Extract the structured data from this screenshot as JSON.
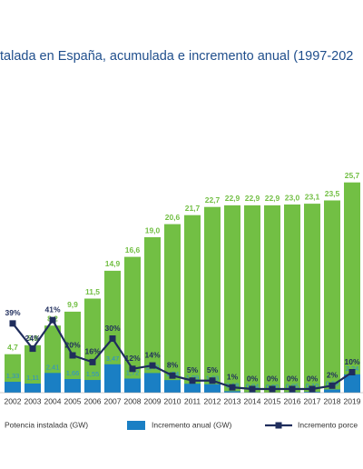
{
  "chart_data": {
    "type": "bar_line",
    "title": "talada en España, acumulada e incremento anual (1997-202",
    "categories": [
      "2002",
      "2003",
      "2004",
      "2005",
      "2006",
      "2007",
      "2008",
      "2009",
      "2010",
      "2011",
      "2012",
      "2013",
      "2014",
      "2015",
      "2016",
      "2017",
      "2018",
      "2019"
    ],
    "series": [
      {
        "name": "Potencia instalada (GW)",
        "color": "#72bf44",
        "values": [
          4.7,
          5.8,
          8.2,
          9.9,
          11.5,
          14.9,
          16.6,
          19.0,
          20.6,
          21.7,
          22.7,
          22.9,
          22.9,
          22.9,
          23.0,
          23.1,
          23.5,
          25.7
        ],
        "value_labels": [
          "4,7",
          "5,8",
          "8,2",
          "9,9",
          "11,5",
          "14,9",
          "16,6",
          "19,0",
          "20,6",
          "21,7",
          "22,7",
          "22,9",
          "22,9",
          "22,9",
          "23,0",
          "23,1",
          "23,5",
          "25,7"
        ]
      },
      {
        "name": "Incremento anual (GW)",
        "color": "#1a7fc4",
        "values": [
          1.33,
          1.11,
          2.41,
          1.66,
          1.55,
          3.47,
          1.72,
          2.4,
          1.54,
          1.09,
          1.03,
          0.18,
          0.04,
          0.0,
          0.05,
          0.1,
          0.39,
          2.24
        ],
        "value_labels": [
          "1,33",
          "1,11",
          "2,41",
          "1,66",
          "1,55",
          "3,47",
          "1,72",
          "2,40",
          "1,54",
          "1,09",
          "1,03",
          "0,18",
          "0,04",
          "0,00",
          "0,05",
          "0,10",
          "0,39",
          "2,24"
        ]
      },
      {
        "name": "Incremento porce",
        "color": "#1f2d5c",
        "values": [
          39,
          24,
          41,
          20,
          16,
          30,
          12,
          14,
          8,
          5,
          5,
          1,
          0,
          0,
          0,
          0,
          2,
          10
        ],
        "value_labels": [
          "39%",
          "24%",
          "41%",
          "20%",
          "16%",
          "30%",
          "12%",
          "14%",
          "8%",
          "5%",
          "5%",
          "1%",
          "0%",
          "0%",
          "0%",
          "0%",
          "2%",
          "10%"
        ]
      }
    ]
  }
}
